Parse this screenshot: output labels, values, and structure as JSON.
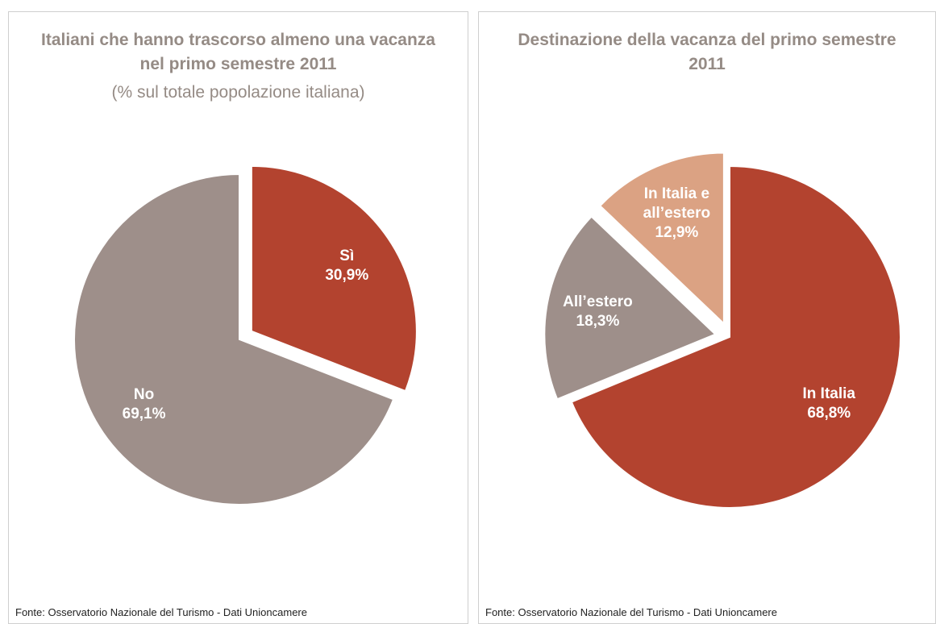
{
  "chart_data": [
    {
      "type": "pie",
      "title": "Italiani che hanno trascorso almeno una vacanza nel primo semestre 2011",
      "subtitle": "(% sul totale popolazione italiana)",
      "categories": [
        "Sì",
        "No"
      ],
      "values": [
        30.9,
        69.1
      ],
      "value_labels": [
        "30,9%",
        "69,1%"
      ],
      "colors": [
        "#b3432f",
        "#9e8f8a"
      ],
      "exploded": [
        true,
        false
      ],
      "source": "Fonte: Osservatorio Nazionale del Turismo - Dati Unioncamere"
    },
    {
      "type": "pie",
      "title": "Destinazione della vacanza del primo semestre 2011",
      "categories": [
        "In Italia",
        "All’estero",
        "In Italia e all’estero"
      ],
      "values": [
        68.8,
        18.3,
        12.9
      ],
      "value_labels": [
        "68,8%",
        "18,3%",
        "12,9%"
      ],
      "colors": [
        "#b3432f",
        "#9e8f8a",
        "#dba283"
      ],
      "exploded": [
        false,
        true,
        true
      ],
      "source": "Fonte: Osservatorio Nazionale del Turismo - Dati Unioncamere"
    }
  ]
}
